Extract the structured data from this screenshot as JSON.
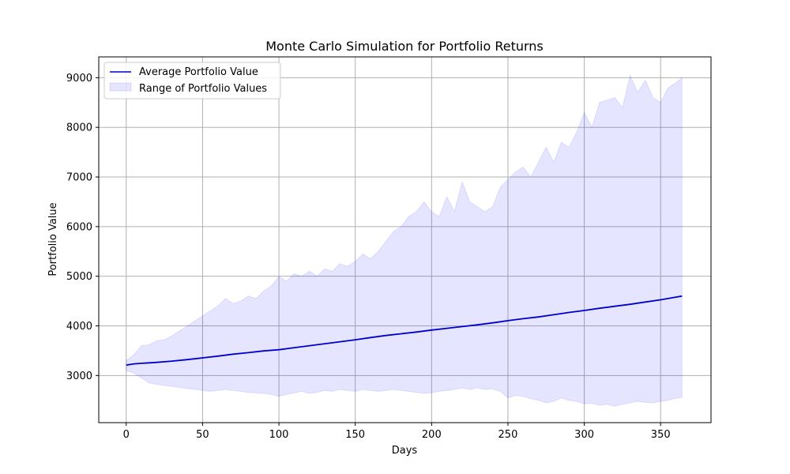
{
  "chart_data": {
    "type": "line",
    "title": "Monte Carlo Simulation for Portfolio Returns",
    "xlabel": "Days",
    "ylabel": "Portfolio Value",
    "xlim": [
      -18,
      383
    ],
    "ylim": [
      2050,
      9420
    ],
    "xticks": [
      0,
      50,
      100,
      150,
      200,
      250,
      300,
      350
    ],
    "yticks": [
      3000,
      4000,
      5000,
      6000,
      7000,
      8000,
      9000
    ],
    "grid": true,
    "legend_position": "top-left",
    "series": [
      {
        "name": "Average Portfolio Value",
        "kind": "line",
        "color": "#0000cc",
        "x": [
          0,
          5,
          10,
          15,
          20,
          30,
          40,
          50,
          60,
          70,
          80,
          90,
          100,
          110,
          120,
          130,
          140,
          150,
          160,
          170,
          180,
          190,
          200,
          210,
          220,
          230,
          240,
          250,
          260,
          270,
          280,
          290,
          300,
          310,
          320,
          330,
          340,
          350,
          360,
          364
        ],
        "y": [
          3210,
          3235,
          3245,
          3255,
          3265,
          3290,
          3320,
          3355,
          3390,
          3430,
          3460,
          3495,
          3520,
          3560,
          3600,
          3640,
          3680,
          3720,
          3765,
          3805,
          3840,
          3875,
          3915,
          3950,
          3985,
          4020,
          4060,
          4105,
          4145,
          4180,
          4225,
          4270,
          4310,
          4355,
          4395,
          4435,
          4480,
          4525,
          4580,
          4600
        ]
      },
      {
        "name": "Range of Portfolio Values",
        "kind": "band",
        "color": "#0000ff",
        "x": [
          0,
          5,
          10,
          15,
          20,
          25,
          30,
          35,
          40,
          45,
          50,
          55,
          60,
          65,
          70,
          75,
          80,
          85,
          90,
          95,
          100,
          105,
          110,
          115,
          120,
          125,
          130,
          135,
          140,
          145,
          150,
          155,
          160,
          165,
          170,
          175,
          180,
          185,
          190,
          195,
          200,
          205,
          210,
          215,
          220,
          225,
          230,
          235,
          240,
          245,
          250,
          255,
          260,
          265,
          270,
          275,
          280,
          285,
          290,
          295,
          300,
          305,
          310,
          315,
          320,
          325,
          330,
          335,
          340,
          345,
          350,
          355,
          360,
          364
        ],
        "upper": [
          3300,
          3420,
          3600,
          3620,
          3700,
          3720,
          3800,
          3900,
          4000,
          4100,
          4200,
          4300,
          4400,
          4550,
          4450,
          4500,
          4600,
          4550,
          4700,
          4800,
          5000,
          4900,
          5050,
          5000,
          5100,
          5000,
          5150,
          5100,
          5250,
          5200,
          5300,
          5450,
          5350,
          5500,
          5700,
          5900,
          6000,
          6200,
          6300,
          6500,
          6300,
          6200,
          6600,
          6300,
          6900,
          6500,
          6400,
          6300,
          6400,
          6800,
          6950,
          7100,
          7200,
          7000,
          7300,
          7600,
          7300,
          7700,
          7600,
          7900,
          8300,
          8000,
          8500,
          8550,
          8600,
          8400,
          9050,
          8700,
          8950,
          8600,
          8500,
          8800,
          8900,
          9000
        ],
        "lower": [
          3100,
          3050,
          2950,
          2850,
          2820,
          2800,
          2780,
          2760,
          2740,
          2720,
          2700,
          2680,
          2700,
          2720,
          2700,
          2680,
          2660,
          2650,
          2640,
          2620,
          2580,
          2620,
          2650,
          2680,
          2640,
          2660,
          2700,
          2680,
          2720,
          2700,
          2680,
          2720,
          2700,
          2680,
          2700,
          2720,
          2700,
          2680,
          2660,
          2640,
          2650,
          2680,
          2700,
          2720,
          2750,
          2720,
          2750,
          2720,
          2730,
          2680,
          2550,
          2600,
          2580,
          2530,
          2500,
          2450,
          2480,
          2550,
          2500,
          2480,
          2430,
          2440,
          2400,
          2420,
          2380,
          2420,
          2450,
          2480,
          2460,
          2450,
          2480,
          2500,
          2540,
          2560
        ]
      }
    ]
  }
}
